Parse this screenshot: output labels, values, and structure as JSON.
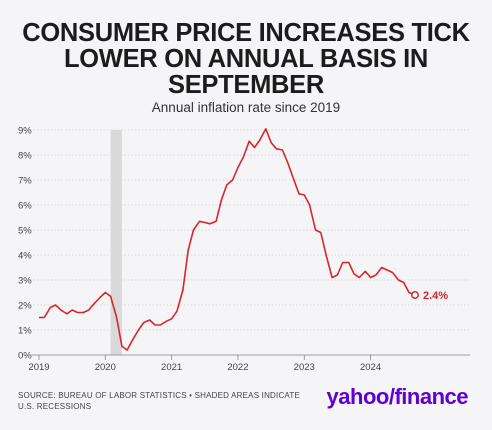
{
  "title": "CONSUMER PRICE INCREASES TICK\nLOWER ON ANNUAL BASIS IN\nSEPTEMBER",
  "subtitle": "Annual inflation rate since 2019",
  "source": "SOURCE: BUREAU OF LABOR STATISTICS • SHADED AREAS INDICATE U.S. RECESSIONS",
  "logo": {
    "part1": "yahoo",
    "slash": "/",
    "part2": "finance"
  },
  "colors": {
    "line": "#d7262b",
    "recession": "#d9d9d9",
    "grid": "#cccccc",
    "text": "#1c1c1c",
    "brand": "#6001d2"
  },
  "chart_data": {
    "type": "line",
    "title": "CONSUMER PRICE INCREASES TICK LOWER ON ANNUAL BASIS IN SEPTEMBER",
    "subtitle": "Annual inflation rate since 2019",
    "y_ticks": [
      "0%",
      "1%",
      "2%",
      "3%",
      "4%",
      "5%",
      "6%",
      "7%",
      "8%",
      "9%"
    ],
    "x_ticks": [
      {
        "label": "2019",
        "t": 2019.0
      },
      {
        "label": "2020",
        "t": 2020.0
      },
      {
        "label": "2021",
        "t": 2021.0
      },
      {
        "label": "2022",
        "t": 2022.0
      },
      {
        "label": "2023",
        "t": 2023.0
      },
      {
        "label": "2024",
        "t": 2024.0
      }
    ],
    "ylim": [
      0,
      9
    ],
    "grid": true,
    "recession": {
      "start": 2020.08,
      "end": 2020.25
    },
    "end_label": "2.4%",
    "series": [
      {
        "points": [
          [
            2019.0,
            1.5
          ],
          [
            2019.08,
            1.5
          ],
          [
            2019.17,
            1.9
          ],
          [
            2019.25,
            2.0
          ],
          [
            2019.33,
            1.8
          ],
          [
            2019.42,
            1.65
          ],
          [
            2019.5,
            1.8
          ],
          [
            2019.58,
            1.7
          ],
          [
            2019.67,
            1.7
          ],
          [
            2019.75,
            1.8
          ],
          [
            2019.83,
            2.05
          ],
          [
            2019.92,
            2.3
          ],
          [
            2020.0,
            2.5
          ],
          [
            2020.08,
            2.35
          ],
          [
            2020.17,
            1.5
          ],
          [
            2020.25,
            0.35
          ],
          [
            2020.33,
            0.2
          ],
          [
            2020.42,
            0.65
          ],
          [
            2020.5,
            1.0
          ],
          [
            2020.58,
            1.3
          ],
          [
            2020.67,
            1.4
          ],
          [
            2020.75,
            1.2
          ],
          [
            2020.83,
            1.2
          ],
          [
            2020.92,
            1.35
          ],
          [
            2021.0,
            1.45
          ],
          [
            2021.08,
            1.75
          ],
          [
            2021.17,
            2.6
          ],
          [
            2021.25,
            4.2
          ],
          [
            2021.33,
            5.0
          ],
          [
            2021.42,
            5.35
          ],
          [
            2021.5,
            5.3
          ],
          [
            2021.58,
            5.25
          ],
          [
            2021.67,
            5.35
          ],
          [
            2021.75,
            6.2
          ],
          [
            2021.83,
            6.8
          ],
          [
            2021.92,
            7.0
          ],
          [
            2022.0,
            7.5
          ],
          [
            2022.08,
            7.9
          ],
          [
            2022.17,
            8.55
          ],
          [
            2022.25,
            8.3
          ],
          [
            2022.33,
            8.6
          ],
          [
            2022.42,
            9.05
          ],
          [
            2022.5,
            8.5
          ],
          [
            2022.58,
            8.25
          ],
          [
            2022.67,
            8.2
          ],
          [
            2022.75,
            7.7
          ],
          [
            2022.83,
            7.1
          ],
          [
            2022.92,
            6.45
          ],
          [
            2023.0,
            6.4
          ],
          [
            2023.08,
            6.0
          ],
          [
            2023.17,
            5.0
          ],
          [
            2023.25,
            4.9
          ],
          [
            2023.33,
            4.0
          ],
          [
            2023.42,
            3.1
          ],
          [
            2023.5,
            3.2
          ],
          [
            2023.58,
            3.7
          ],
          [
            2023.67,
            3.7
          ],
          [
            2023.75,
            3.25
          ],
          [
            2023.83,
            3.1
          ],
          [
            2023.92,
            3.35
          ],
          [
            2024.0,
            3.1
          ],
          [
            2024.08,
            3.2
          ],
          [
            2024.17,
            3.5
          ],
          [
            2024.25,
            3.4
          ],
          [
            2024.33,
            3.3
          ],
          [
            2024.42,
            3.0
          ],
          [
            2024.5,
            2.9
          ],
          [
            2024.58,
            2.5
          ],
          [
            2024.67,
            2.4
          ]
        ]
      }
    ]
  }
}
